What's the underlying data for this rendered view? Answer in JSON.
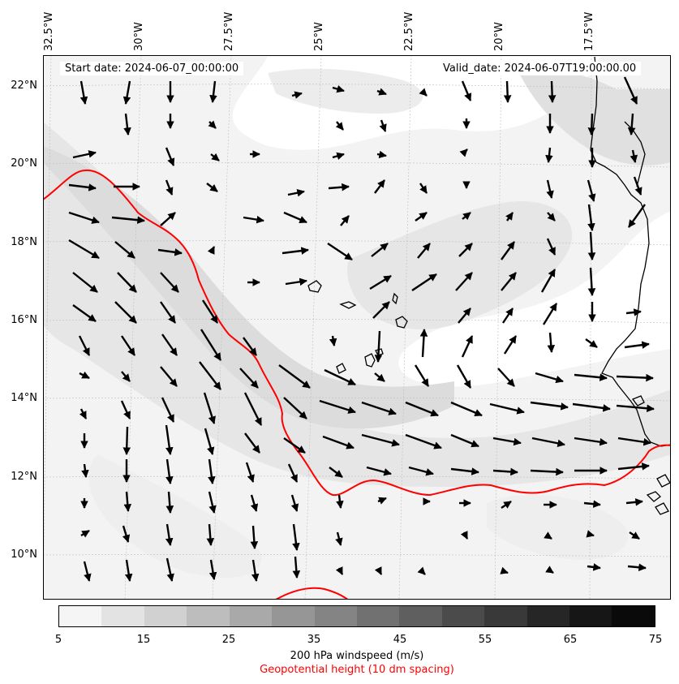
{
  "top_axis": {
    "longitude_labels": [
      "32.5°W",
      "30°W",
      "27.5°W",
      "25°W",
      "22.5°W",
      "20°W",
      "17.5°W"
    ]
  },
  "left_axis": {
    "latitude_labels": [
      "22°N",
      "20°N",
      "18°N",
      "16°N",
      "14°N",
      "12°N",
      "10°N"
    ]
  },
  "map": {
    "start_date": "Start date: 2024-06-07_00:00:00",
    "valid_date": "Valid_date: 2024-06-07T19:00:00.00",
    "geopotential_color": "#ff0000",
    "wind_arrow_color": "#000000",
    "coastline_color": "#000000"
  },
  "colorbar": {
    "ticks": [
      "5",
      "15",
      "25",
      "35",
      "45",
      "55",
      "65",
      "75"
    ],
    "colors": [
      "#f5f5f5",
      "#e3e3e3",
      "#d1d1d1",
      "#bdbdbd",
      "#a9a9a9",
      "#969696",
      "#848484",
      "#717171",
      "#5f5f5f",
      "#4b4b4b",
      "#393939",
      "#262626",
      "#161616",
      "#0a0a0a"
    ],
    "label": "200 hPa windspeed (m/s)",
    "sublabel": "Geopotential height (10 dm spacing)",
    "sublabel_color": "#ff0000"
  }
}
